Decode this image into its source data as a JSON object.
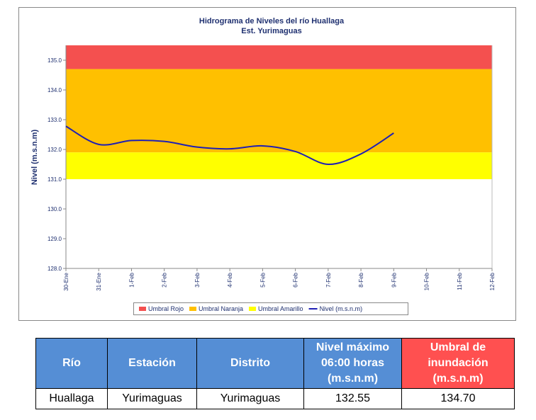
{
  "chart_data": {
    "type": "line",
    "title": "Hidrograma de Niveles del río Huallaga",
    "subtitle": "Est. Yurimaguas",
    "y_label": "Nivel (m.s.n.m)",
    "categories": [
      "30-Ene",
      "31-Ene",
      "1-Feb",
      "2-Feb",
      "3-Feb",
      "4-Feb",
      "5-Feb",
      "6-Feb",
      "7-Feb",
      "8-Feb",
      "9-Feb",
      "10-Feb",
      "11-Feb",
      "12-Feb"
    ],
    "bands": [
      {
        "name": "Umbral Rojo",
        "color": "#f4504f",
        "from": 134.7,
        "to": 135.5
      },
      {
        "name": "Umbral Naranja",
        "color": "#ffc000",
        "from": 131.9,
        "to": 134.7
      },
      {
        "name": "Umbral Amarillo",
        "color": "#ffff00",
        "from": 131.0,
        "to": 131.9
      }
    ],
    "series": [
      {
        "name": "Nivel (m.s.n.m)",
        "color": "#1f1fb4",
        "values": [
          132.78,
          132.17,
          132.3,
          132.27,
          132.08,
          132.02,
          132.12,
          131.93,
          131.5,
          131.85,
          132.55,
          null,
          null,
          null
        ]
      }
    ],
    "ylim": [
      128,
      135.5
    ],
    "yticks": [
      {
        "value": 128,
        "label": "128.0"
      },
      {
        "value": 129,
        "label": "129.0"
      },
      {
        "value": 130,
        "label": "130.0"
      },
      {
        "value": 131,
        "label": "131.0"
      },
      {
        "value": 132,
        "label": "132.0"
      },
      {
        "value": 133,
        "label": "133.0"
      },
      {
        "value": 134,
        "label": "134.0"
      },
      {
        "value": 135,
        "label": "135.0"
      }
    ]
  },
  "table": {
    "header": [
      "Río",
      "Estación",
      "Distrito",
      "Nivel máximo 06:00 horas (m.s.n.m)",
      "Umbral de inundación (m.s.n.m)"
    ],
    "rows": [
      [
        "Huallaga",
        "Yurimaguas",
        "Yurimaguas",
        "132.55",
        "134.70"
      ]
    ]
  }
}
